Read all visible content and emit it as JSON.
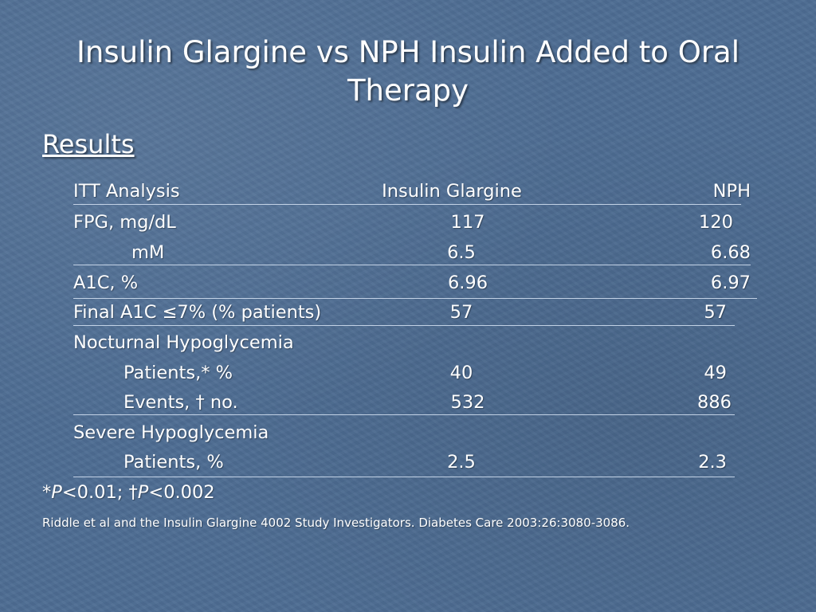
{
  "slide": {
    "title_line1": "Insulin Glargine vs NPH Insulin Added to Oral",
    "title_line2": "Therapy",
    "heading": "Results"
  },
  "table": {
    "header": {
      "col1": "ITT Analysis",
      "col2": "Insulin Glargine",
      "col3": "NPH"
    },
    "rows": [
      {
        "label": "FPG, mg/dL",
        "glargine": "117",
        "nph": "120"
      },
      {
        "label": "mM",
        "glargine": "6.5",
        "nph": "6.68"
      },
      {
        "label": "A1C, %",
        "glargine": "6.96",
        "nph": "6.97"
      },
      {
        "label": "Final A1C ≤7% (% patients)",
        "glargine": "57",
        "nph": "57"
      },
      {
        "label": "Nocturnal Hypoglycemia",
        "glargine": "",
        "nph": ""
      },
      {
        "label": "Patients,* %",
        "glargine": "40",
        "nph": "49"
      },
      {
        "label": "Events, † no.",
        "glargine": "532",
        "nph": "886"
      },
      {
        "label": "Severe Hypoglycemia",
        "glargine": "",
        "nph": ""
      },
      {
        "label": "Patients, %",
        "glargine": "2.5",
        "nph": "2.3"
      }
    ]
  },
  "footnote": {
    "star": "*",
    "p1_letter": "P",
    "p1_rest": "<0.01; †",
    "p2_letter": "P",
    "p2_rest": "<0.002"
  },
  "citation": "Riddle et al and the Insulin Glargine 4002 Study Investigators.  Diabetes Care 2003:26:3080-3086."
}
